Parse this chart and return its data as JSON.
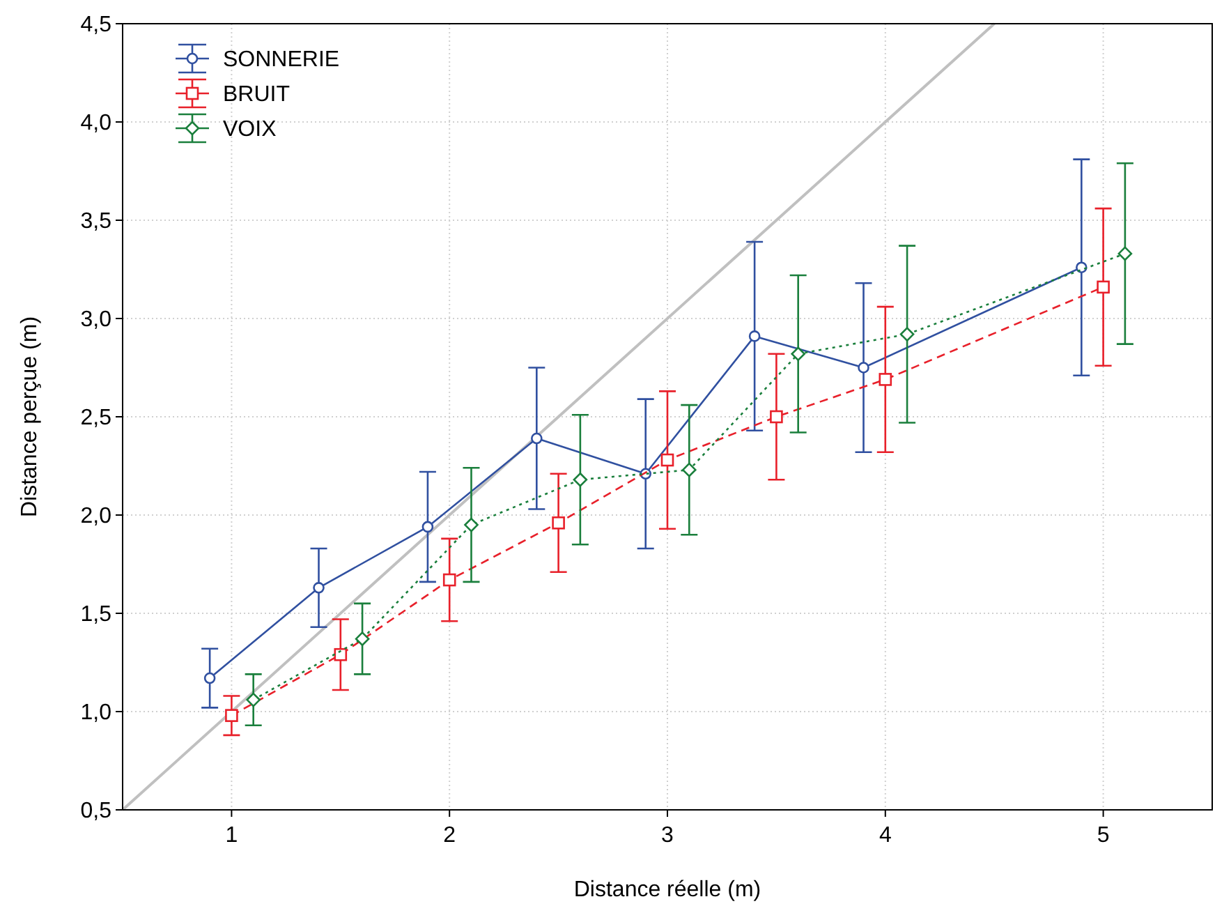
{
  "chart_data": {
    "type": "line",
    "xlabel": "Distance réelle (m)",
    "ylabel": "Distance perçue (m)",
    "xlim": [
      0.5,
      5.5
    ],
    "xticks": [
      1,
      2,
      3,
      4,
      5
    ],
    "ylim": [
      0.5,
      4.5
    ],
    "yticks": [
      {
        "value": 0.5,
        "label": "0,5"
      },
      {
        "value": 1,
        "label": "1,0"
      },
      {
        "value": 1.5,
        "label": "1,5"
      },
      {
        "value": 2,
        "label": "2,0"
      },
      {
        "value": 2.5,
        "label": "2,5"
      },
      {
        "value": 3,
        "label": "3,0"
      },
      {
        "value": 3.5,
        "label": "3,5"
      },
      {
        "value": 4,
        "label": "4,0"
      },
      {
        "value": 4.5,
        "label": "4,5"
      }
    ],
    "grid": true,
    "legend": "top left",
    "series": [
      {
        "type": "line",
        "color": "#c0c0c0",
        "x": [
          0.5,
          4.5
        ],
        "values": [
          0.5,
          4.5
        ],
        "marker": "none",
        "line_style": "solid"
      },
      {
        "name": "SONNERIE",
        "color": "#3050a0",
        "marker": "circle",
        "line_style": "solid",
        "x": [
          0.9,
          1.4,
          1.9,
          2.4,
          2.9,
          3.4,
          3.9,
          4.9
        ],
        "values": [
          1.17,
          1.63,
          1.94,
          2.39,
          2.21,
          2.91,
          2.75,
          3.26
        ],
        "errors": [
          0.15,
          0.2,
          0.28,
          0.36,
          0.38,
          0.48,
          0.43,
          0.55
        ]
      },
      {
        "name": "BRUIT",
        "color": "#e8202a",
        "marker": "square",
        "line_style": "dashed",
        "x": [
          1,
          1.5,
          2,
          2.5,
          3,
          3.5,
          4,
          5
        ],
        "values": [
          0.98,
          1.29,
          1.67,
          1.96,
          2.28,
          2.5,
          2.69,
          3.16
        ],
        "errors": [
          0.1,
          0.18,
          0.21,
          0.25,
          0.35,
          0.32,
          0.37,
          0.4
        ]
      },
      {
        "name": "VOIX",
        "color": "#1a7f3c",
        "marker": "diamond",
        "line_style": "dotted",
        "x": [
          1.1,
          1.6,
          2.1,
          2.6,
          3.1,
          3.6,
          4.1,
          5.1
        ],
        "values": [
          1.06,
          1.37,
          1.95,
          2.18,
          2.23,
          2.82,
          2.92,
          3.33
        ],
        "errors": [
          0.13,
          0.18,
          0.29,
          0.33,
          0.33,
          0.4,
          0.45,
          0.46
        ]
      }
    ]
  }
}
